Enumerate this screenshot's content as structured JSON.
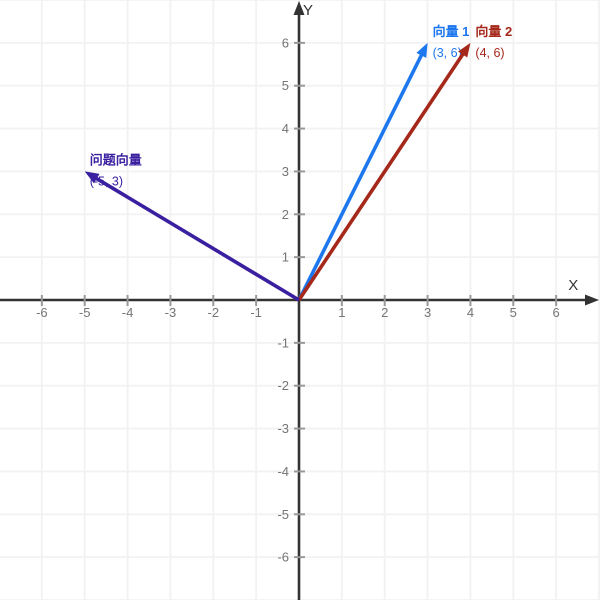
{
  "colors": {
    "background": "#ffffff",
    "grid": "#f2f2f2",
    "axis": "#333333",
    "tick": "#999999",
    "tick_label": "#757575",
    "axis_label": "#333333"
  },
  "chart_data": {
    "type": "line",
    "subtype": "vector_plot",
    "title": "",
    "xlabel": "X",
    "ylabel": "Y",
    "xlim": [
      -7,
      7
    ],
    "ylim": [
      -7,
      7
    ],
    "grid": true,
    "legend": "none",
    "xticks": [
      -6,
      -5,
      -4,
      -3,
      -2,
      -1,
      1,
      2,
      3,
      4,
      5,
      6
    ],
    "yticks": [
      -6,
      -5,
      -4,
      -3,
      -2,
      -1,
      1,
      2,
      3,
      4,
      5,
      6
    ],
    "vectors": [
      {
        "id": "vector-1",
        "label": "向量 1",
        "coords_label": "(3, 6)",
        "from": [
          0,
          0
        ],
        "to": [
          3,
          6
        ],
        "color": "#1c76ee"
      },
      {
        "id": "vector-2",
        "label": "向量 2",
        "coords_label": "(4, 6)",
        "from": [
          0,
          0
        ],
        "to": [
          4,
          6
        ],
        "color": "#a6281a"
      },
      {
        "id": "question-vector",
        "label": "问题向量",
        "coords_label": "(-5, 3)",
        "from": [
          0,
          0
        ],
        "to": [
          -5,
          3
        ],
        "color": "#3a1fa0"
      }
    ]
  }
}
